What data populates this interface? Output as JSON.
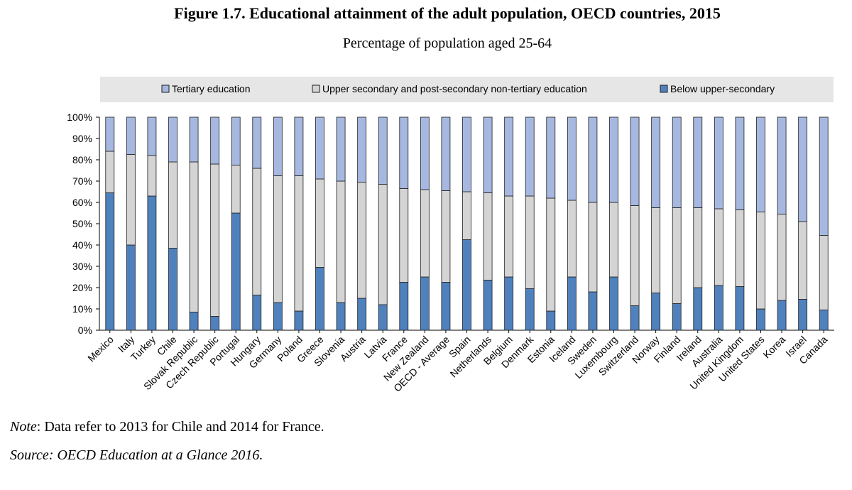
{
  "title": "Figure 1.7. Educational attainment of the adult population, OECD countries, 2015",
  "subtitle": "Percentage of population aged 25-64",
  "note": {
    "label": "Note",
    "text": ": Data refer to 2013 for Chile and 2014 for France."
  },
  "source": "Source: OECD Education at a Glance 2016.",
  "colors": {
    "tertiary": "#a6b8e0",
    "upper": "#d4d4d4",
    "below": "#4f81bd",
    "legend_bg": "#e6e6e6",
    "stroke": "#1f1f1f"
  },
  "chart_data": {
    "type": "bar",
    "stacked": true,
    "ylim": [
      0,
      100
    ],
    "yticks": [
      "0%",
      "10%",
      "20%",
      "30%",
      "40%",
      "50%",
      "60%",
      "70%",
      "80%",
      "90%",
      "100%"
    ],
    "legend_position": "top",
    "categories": [
      "Mexico",
      "Italy",
      "Turkey",
      "Chile",
      "Slovak Republic",
      "Czech Republic",
      "Portugal",
      "Hungary",
      "Germany",
      "Poland",
      "Greece",
      "Slovenia",
      "Austria",
      "Latvia",
      "France",
      "New Zealand",
      "OECD - Average",
      "Spain",
      "Netherlands",
      "Belgium",
      "Denmark",
      "Estonia",
      "Iceland",
      "Sweden",
      "Luxembourg",
      "Switzerland",
      "Norway",
      "Finland",
      "Ireland",
      "Australia",
      "United Kingdom",
      "United States",
      "Korea",
      "Israel",
      "Canada"
    ],
    "series": [
      {
        "name": "Below upper-secondary",
        "values": [
          64.5,
          40,
          63,
          38.5,
          8.5,
          6.5,
          55,
          16.5,
          13,
          9,
          29.5,
          13,
          15,
          12,
          22.5,
          25,
          22.5,
          42.5,
          23.5,
          25,
          19.5,
          9,
          25,
          18,
          25,
          11.5,
          17.5,
          12.5,
          20,
          21,
          20.5,
          10,
          14,
          14.5,
          9.5
        ]
      },
      {
        "name": "Upper secondary and post-secondary non-tertiary education",
        "values": [
          19.5,
          42.5,
          19,
          40.5,
          70.5,
          71.5,
          22.5,
          59.5,
          59.5,
          63.5,
          41.5,
          57,
          54.5,
          56.5,
          44,
          41,
          43,
          22.5,
          41,
          38,
          43.5,
          53,
          36,
          42,
          35,
          47,
          40,
          45,
          37.5,
          36,
          36,
          45.5,
          40.5,
          36.5,
          35
        ]
      },
      {
        "name": "Tertiary education",
        "values": [
          16,
          17.5,
          18,
          21,
          21,
          22,
          22.5,
          24,
          27.5,
          27.5,
          29,
          30,
          30.5,
          31.5,
          33.5,
          34,
          34.5,
          35,
          35.5,
          37,
          37,
          38,
          39,
          40,
          40,
          41.5,
          42.5,
          42.5,
          42.5,
          43,
          43.5,
          44.5,
          45.5,
          49,
          55.5
        ]
      }
    ],
    "legend_order": [
      "Tertiary education",
      "Upper secondary and post-secondary non-tertiary education",
      "Below upper-secondary"
    ]
  }
}
